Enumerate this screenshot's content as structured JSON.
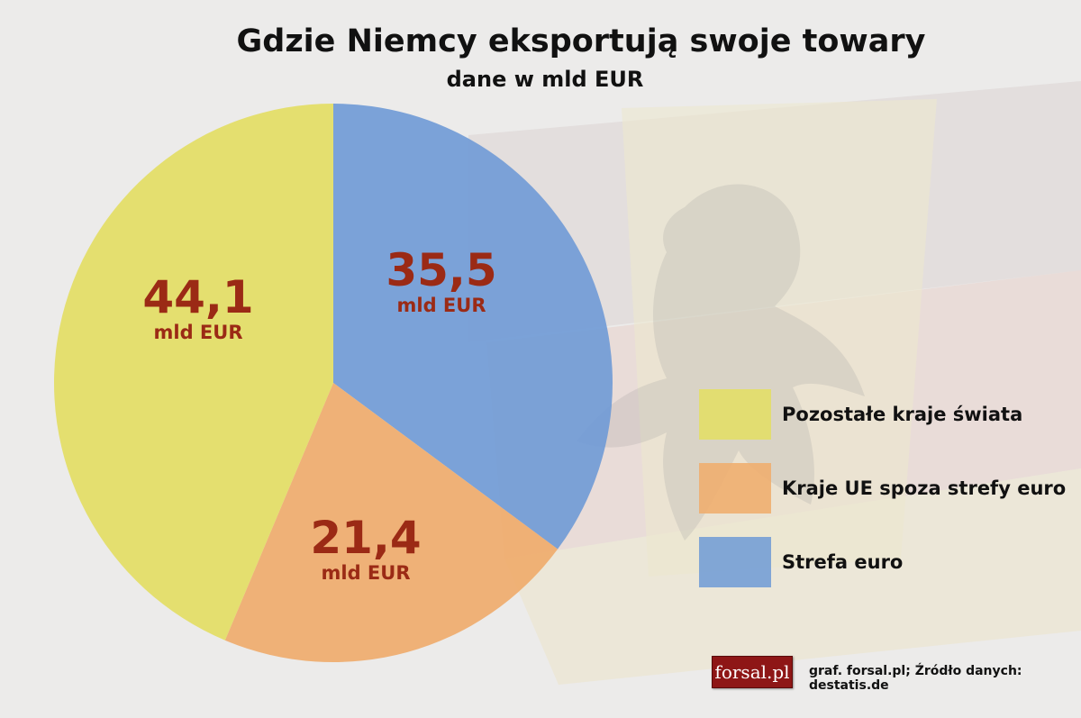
{
  "chart_data": {
    "type": "pie",
    "title": "Gdzie Niemcy eksportują swoje towary",
    "subtitle": "dane w mld EUR",
    "slices": [
      {
        "name": "Strefa euro",
        "value": 35.5,
        "label": "35,5",
        "unit": "mld EUR",
        "color": "#6f9ad6"
      },
      {
        "name": "Kraje UE spoza strefy euro",
        "value": 21.4,
        "label": "21,4",
        "unit": "mld EUR",
        "color": "#f0ab6a"
      },
      {
        "name": "Pozostałe kraje świata",
        "value": 44.1,
        "label": "44,1",
        "unit": "mld EUR",
        "color": "#e3de62"
      }
    ],
    "legend": {
      "placement": "right",
      "items": [
        "Pozostałe kraje świata",
        "Kraje UE spoza strefy euro",
        "Strefa euro"
      ]
    }
  },
  "footer": {
    "logo_text": "forsal.pl",
    "source": "graf. forsal.pl; Źródło danych: destatis.de"
  }
}
